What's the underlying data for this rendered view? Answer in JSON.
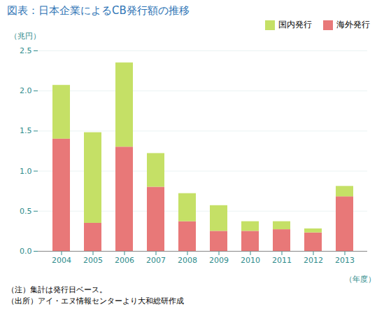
{
  "chart_data": {
    "type": "bar",
    "title": "図表：日本企業によるCB発行額の推移",
    "x_label": "（年度）",
    "y_label": "（兆円）",
    "categories": [
      "2004",
      "2005",
      "2006",
      "2007",
      "2008",
      "2009",
      "2010",
      "2011",
      "2012",
      "2013"
    ],
    "series": [
      {
        "name": "海外発行",
        "color": "#e87878",
        "values": [
          1.4,
          0.35,
          1.3,
          0.8,
          0.37,
          0.25,
          0.25,
          0.27,
          0.23,
          0.68
        ]
      },
      {
        "name": "国内発行",
        "color": "#c5e066",
        "values": [
          0.67,
          1.13,
          1.05,
          0.42,
          0.35,
          0.32,
          0.12,
          0.1,
          0.05,
          0.13
        ]
      }
    ],
    "stacked": true,
    "ylim": [
      0,
      2.5
    ],
    "yticks": [
      {
        "value": 0,
        "label": "0.0"
      },
      0.5,
      {
        "value": 1,
        "label": "1.0"
      },
      1.5,
      {
        "value": 2,
        "label": "2.0"
      },
      2.5
    ],
    "grid": true,
    "legend": "upper right",
    "annotations": [
      "（注）集計は発行日ベース。",
      "（出所）アイ・エヌ情報センターより大和総研作成"
    ]
  }
}
